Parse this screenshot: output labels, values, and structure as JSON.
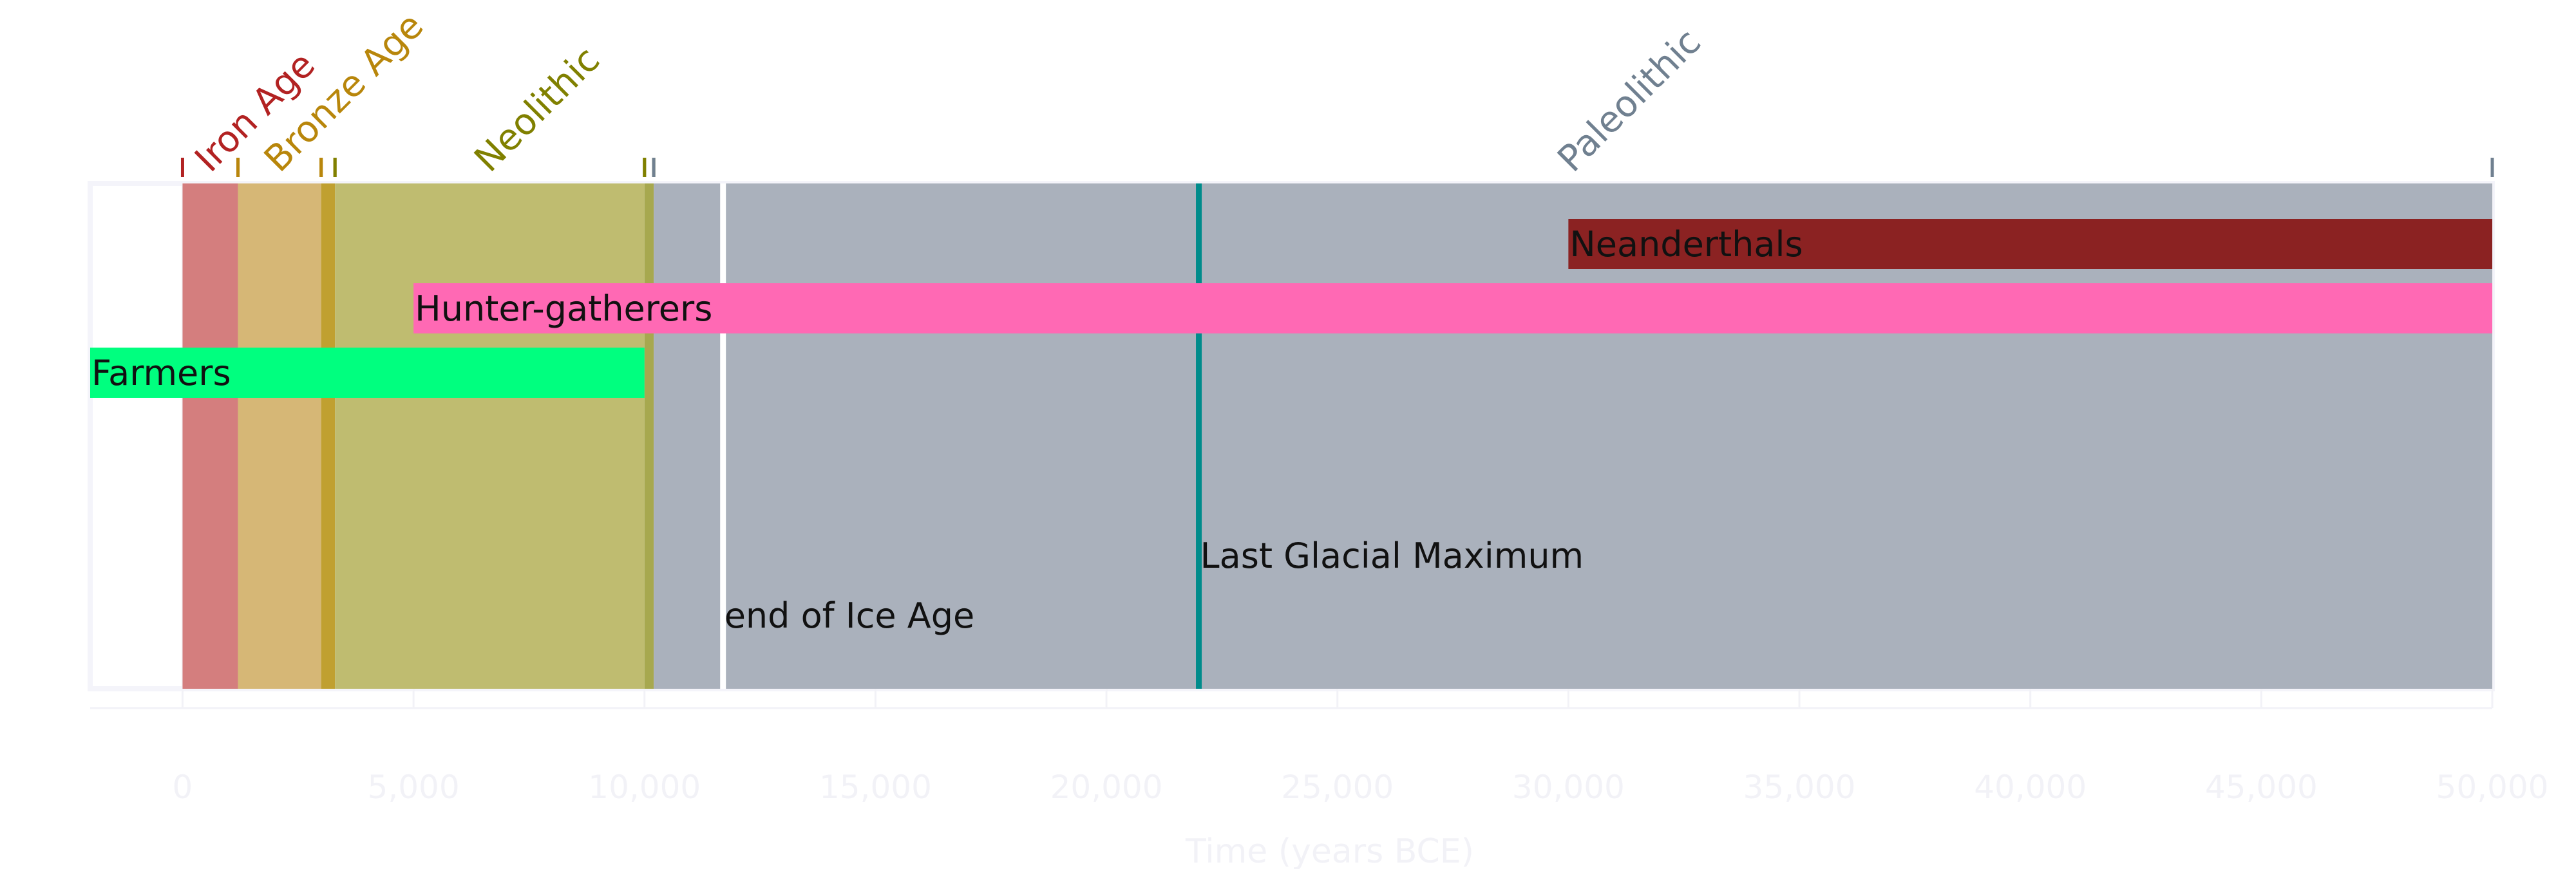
{
  "chart_data": {
    "type": "bar",
    "orientation": "horizontal timeline",
    "xlabel": "Time (years BCE)",
    "xlim": [
      -2000,
      50000
    ],
    "x_ticks": [
      0,
      5000,
      10000,
      15000,
      20000,
      25000,
      30000,
      35000,
      40000,
      45000,
      50000
    ],
    "x_tick_labels": [
      "0",
      "5,000",
      "10,000",
      "15,000",
      "20,000",
      "25,000",
      "30,000",
      "35,000",
      "40,000",
      "45,000",
      "50,000"
    ],
    "grid": true,
    "periods": [
      {
        "name": "Iron Age",
        "start": 0,
        "end": 1200,
        "color": "#d47e7e",
        "label_color": "#b22222"
      },
      {
        "name": "Bronze Age",
        "start": 1200,
        "end": 3000,
        "color": "#d6b776",
        "label_color": "#b8860b"
      },
      {
        "name": "",
        "start": 3000,
        "end": 3300,
        "color": "#c0a030",
        "label_color": "#b8860b"
      },
      {
        "name": "Neolithic",
        "start": 3300,
        "end": 10000,
        "color": "#bfbc70",
        "label_color": "#808000"
      },
      {
        "name": "",
        "start": 10000,
        "end": 10200,
        "color": "#a7a84f",
        "label_color": "#808000"
      },
      {
        "name": "Paleolithic",
        "start": 10200,
        "end": 50000,
        "color": "#aab1bc",
        "label_color": "#708090"
      }
    ],
    "series": [
      {
        "name": "Neanderthals",
        "start": 30000,
        "end": 50000,
        "color": "#8b2222"
      },
      {
        "name": "Hunter-gatherers",
        "start": 5000,
        "end": 50000,
        "color": "#ff69b4"
      },
      {
        "name": "Farmers",
        "start": -2000,
        "end": 10000,
        "color": "#00ff7f"
      }
    ],
    "events": [
      {
        "name": "end of Ice Age",
        "x": 11700,
        "color": "#ffffff"
      },
      {
        "name": "Last Glacial Maximum",
        "x": 22000,
        "color": "#008b8b"
      }
    ]
  }
}
